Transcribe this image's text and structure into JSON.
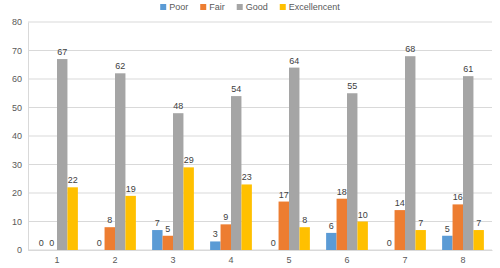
{
  "chart_data": {
    "type": "bar",
    "categories": [
      "1",
      "2",
      "3",
      "4",
      "5",
      "6",
      "7",
      "8"
    ],
    "series": [
      {
        "name": "Poor",
        "color": "#5b9bd5",
        "values": [
          0,
          0,
          7,
          3,
          0,
          6,
          0,
          5
        ]
      },
      {
        "name": "Fair",
        "color": "#ed7d31",
        "values": [
          0,
          8,
          5,
          9,
          17,
          18,
          14,
          16
        ]
      },
      {
        "name": "Good",
        "color": "#a5a5a5",
        "values": [
          67,
          62,
          48,
          54,
          64,
          55,
          68,
          61
        ]
      },
      {
        "name": "Excellencent",
        "color": "#ffc000",
        "values": [
          22,
          19,
          29,
          23,
          8,
          10,
          7,
          7
        ]
      }
    ],
    "ylim": [
      0,
      80
    ],
    "yticks": [
      0,
      10,
      20,
      30,
      40,
      50,
      60,
      70,
      80
    ],
    "grid": true,
    "legend": "top",
    "data_labels": true
  }
}
